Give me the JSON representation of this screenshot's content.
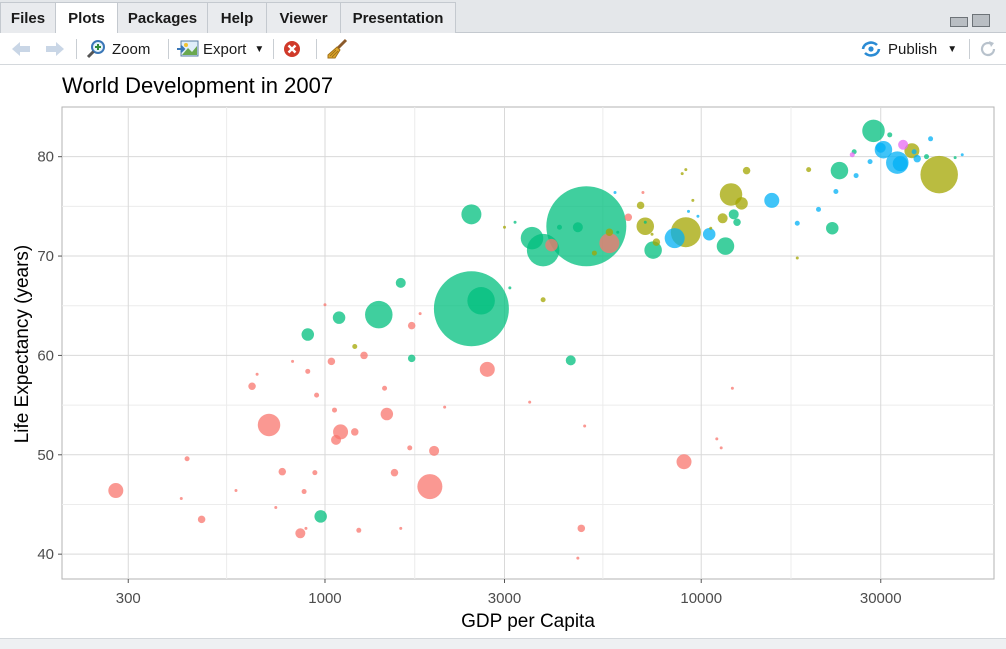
{
  "tabs": [
    {
      "label": "Files",
      "active": false
    },
    {
      "label": "Plots",
      "active": true
    },
    {
      "label": "Packages",
      "active": false
    },
    {
      "label": "Help",
      "active": false
    },
    {
      "label": "Viewer",
      "active": false
    },
    {
      "label": "Presentation",
      "active": false
    }
  ],
  "toolbar": {
    "zoom_label": "Zoom",
    "export_label": "Export",
    "publish_label": "Publish"
  },
  "colors": {
    "africa": "#F8766D",
    "americas": "#A3A500",
    "asia": "#00BF7D",
    "europe": "#00B0F6",
    "oceania": "#E76BF3",
    "publish_accent": "#2a8bd4"
  },
  "chart_data": {
    "type": "scatter",
    "title": "World Development in  2007",
    "xlabel": "GDP per Capita",
    "ylabel": "Life Expectancy (years)",
    "x_scale": "log10",
    "xlim": [
      200,
      60000
    ],
    "ylim": [
      37.5,
      85
    ],
    "x_ticks": [
      300,
      1000,
      3000,
      10000,
      30000
    ],
    "x_tick_labels": [
      "300",
      "1000",
      "3000",
      "10000",
      "30000"
    ],
    "y_ticks": [
      40,
      50,
      60,
      70,
      80
    ],
    "y_tick_labels": [
      "40",
      "50",
      "60",
      "70",
      "80"
    ],
    "grid": true,
    "legend": "none",
    "size_encoding": "population",
    "point_opacity": 0.75,
    "series": [
      {
        "color_key": "africa",
        "points": [
          [
            278,
            46.4,
            6
          ],
          [
            415,
            45.6,
            1
          ],
          [
            430,
            49.6,
            2
          ],
          [
            470,
            43.5,
            3
          ],
          [
            580,
            46.4,
            1
          ],
          [
            640,
            56.9,
            3
          ],
          [
            660,
            58.1,
            1
          ],
          [
            710,
            53.0,
            9
          ],
          [
            740,
            44.7,
            1
          ],
          [
            770,
            48.3,
            3
          ],
          [
            820,
            59.4,
            1
          ],
          [
            860,
            42.1,
            4
          ],
          [
            880,
            46.3,
            2
          ],
          [
            890,
            42.6,
            1
          ],
          [
            900,
            58.4,
            2
          ],
          [
            940,
            48.2,
            2
          ],
          [
            950,
            56.0,
            2
          ],
          [
            1000,
            65.1,
            1
          ],
          [
            1040,
            59.4,
            3
          ],
          [
            1060,
            54.5,
            2
          ],
          [
            1070,
            51.5,
            4
          ],
          [
            1100,
            52.3,
            6
          ],
          [
            1200,
            52.3,
            3
          ],
          [
            1230,
            42.4,
            2
          ],
          [
            1270,
            60.0,
            3
          ],
          [
            1440,
            56.7,
            2
          ],
          [
            1460,
            54.1,
            5
          ],
          [
            1530,
            48.2,
            3
          ],
          [
            1590,
            42.6,
            1
          ],
          [
            1680,
            50.7,
            2
          ],
          [
            1700,
            63.0,
            3
          ],
          [
            1790,
            64.2,
            1
          ],
          [
            1900,
            46.8,
            10
          ],
          [
            1950,
            50.4,
            4
          ],
          [
            2080,
            54.8,
            1
          ],
          [
            2700,
            58.6,
            6
          ],
          [
            3500,
            55.3,
            1
          ],
          [
            4000,
            71.1,
            5
          ],
          [
            4700,
            39.6,
            1
          ],
          [
            4800,
            42.6,
            3
          ],
          [
            4900,
            52.9,
            1
          ],
          [
            5700,
            71.3,
            8
          ],
          [
            6400,
            73.9,
            3
          ],
          [
            7000,
            76.4,
            1
          ],
          [
            9000,
            49.3,
            6
          ],
          [
            11000,
            51.6,
            1
          ],
          [
            11300,
            50.7,
            1
          ],
          [
            12100,
            56.7,
            1
          ]
        ]
      },
      {
        "color_key": "americas",
        "points": [
          [
            1200,
            60.9,
            2
          ],
          [
            3000,
            72.9,
            1
          ],
          [
            3800,
            65.6,
            2
          ],
          [
            5200,
            70.3,
            2
          ],
          [
            5700,
            72.4,
            3
          ],
          [
            6900,
            75.1,
            3
          ],
          [
            7100,
            73.0,
            7
          ],
          [
            7400,
            72.2,
            1
          ],
          [
            7600,
            71.4,
            3
          ],
          [
            8900,
            78.3,
            1
          ],
          [
            9100,
            78.7,
            1
          ],
          [
            9100,
            72.4,
            12
          ],
          [
            9500,
            75.6,
            1
          ],
          [
            10600,
            72.8,
            1
          ],
          [
            11400,
            73.8,
            4
          ],
          [
            12000,
            76.2,
            9
          ],
          [
            12800,
            75.3,
            5
          ],
          [
            13200,
            78.6,
            3
          ],
          [
            18000,
            69.8,
            1
          ],
          [
            19300,
            78.7,
            2
          ],
          [
            36300,
            80.6,
            6
          ],
          [
            42900,
            78.2,
            15
          ]
        ]
      },
      {
        "color_key": "asia",
        "points": [
          [
            900,
            62.1,
            5
          ],
          [
            974,
            43.8,
            5
          ],
          [
            1090,
            63.8,
            5
          ],
          [
            1390,
            64.1,
            11
          ],
          [
            1590,
            67.3,
            4
          ],
          [
            1700,
            59.7,
            3
          ],
          [
            2450,
            74.2,
            8
          ],
          [
            2450,
            64.7,
            30
          ],
          [
            2600,
            65.5,
            11
          ],
          [
            3100,
            66.8,
            1
          ],
          [
            3200,
            73.4,
            1
          ],
          [
            3550,
            71.8,
            9
          ],
          [
            3800,
            70.6,
            13
          ],
          [
            4200,
            72.9,
            2
          ],
          [
            4500,
            59.5,
            4
          ],
          [
            4700,
            72.9,
            4
          ],
          [
            4950,
            73.0,
            32
          ],
          [
            6000,
            72.4,
            1
          ],
          [
            7100,
            73.4,
            1
          ],
          [
            7450,
            70.6,
            7
          ],
          [
            11600,
            71.0,
            7
          ],
          [
            12200,
            74.2,
            4
          ],
          [
            12450,
            73.4,
            3
          ],
          [
            22300,
            72.8,
            5
          ],
          [
            23300,
            78.6,
            7
          ],
          [
            25500,
            80.5,
            2
          ],
          [
            28700,
            82.6,
            9
          ],
          [
            31700,
            82.2,
            2
          ],
          [
            39700,
            80.0,
            2
          ],
          [
            47300,
            79.9,
            1
          ]
        ]
      },
      {
        "color_key": "europe",
        "points": [
          [
            5900,
            76.4,
            1
          ],
          [
            8500,
            71.8,
            8
          ],
          [
            9250,
            74.5,
            1
          ],
          [
            9800,
            74.0,
            1
          ],
          [
            10500,
            72.2,
            5
          ],
          [
            15400,
            75.6,
            6
          ],
          [
            18000,
            73.3,
            2
          ],
          [
            20500,
            74.7,
            2
          ],
          [
            22800,
            76.5,
            2
          ],
          [
            25800,
            78.1,
            2
          ],
          [
            28100,
            79.5,
            2
          ],
          [
            30000,
            80.9,
            4
          ],
          [
            30500,
            80.7,
            7
          ],
          [
            33200,
            79.4,
            9
          ],
          [
            33800,
            79.3,
            6
          ],
          [
            36800,
            80.5,
            2
          ],
          [
            37500,
            79.8,
            3
          ],
          [
            40700,
            81.8,
            2
          ],
          [
            49400,
            80.2,
            1
          ]
        ]
      },
      {
        "color_key": "oceania",
        "points": [
          [
            25200,
            80.2,
            2
          ],
          [
            34400,
            81.2,
            4
          ]
        ]
      }
    ]
  }
}
